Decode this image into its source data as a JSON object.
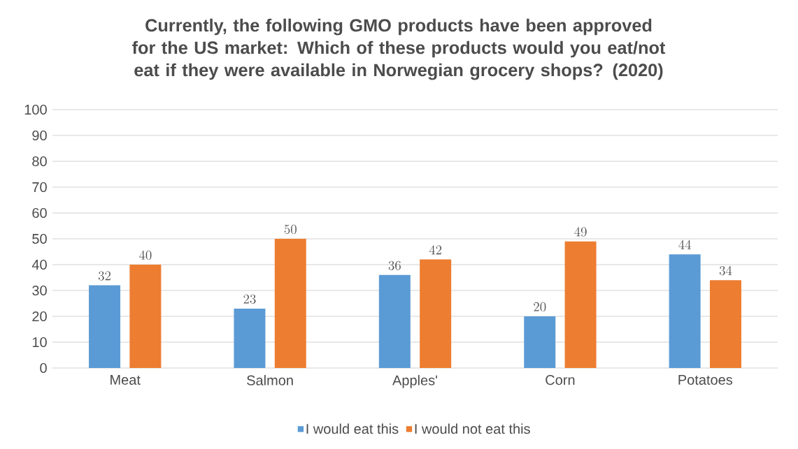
{
  "chart_data": {
    "type": "bar",
    "title": "Currently, the following GMO products have been approved for the US market: Which of these products would you eat/not eat if they were available in Norwegian grocery shops? (2020)",
    "categories": [
      "Meat",
      "Salmon",
      "Apples'",
      "Corn",
      "Potatoes"
    ],
    "series": [
      {
        "name": "I would eat this",
        "color": "#5b9bd5",
        "values": [
          32,
          23,
          36,
          20,
          44
        ]
      },
      {
        "name": "I would not eat this",
        "color": "#ed7d31",
        "values": [
          40,
          50,
          42,
          49,
          34
        ]
      }
    ],
    "ylim": [
      0,
      100
    ],
    "yticks": [
      0,
      10,
      20,
      30,
      40,
      50,
      60,
      70,
      80,
      90,
      100
    ],
    "grid": "y",
    "legend": "bottom",
    "data_labels": true
  }
}
